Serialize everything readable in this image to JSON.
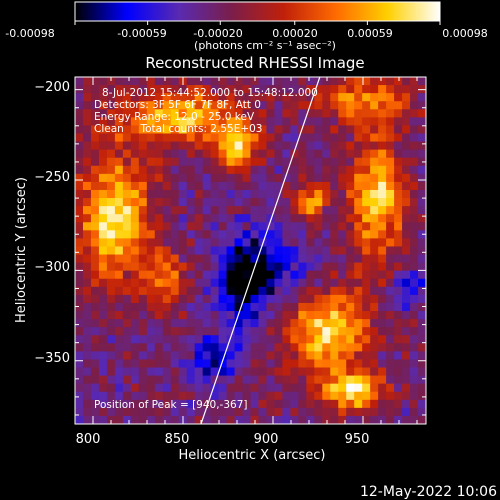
{
  "colorbar": {
    "tick_labels": [
      "-0.00098",
      "-0.00059",
      "-0.00020",
      "0.00020",
      "0.00059",
      "0.00098"
    ],
    "unit_label": "(photons cm⁻² s⁻¹ asec⁻²)",
    "range": [
      -0.00098,
      0.00098
    ],
    "colormap": [
      "#000000",
      "#0000ff",
      "#5a2ab0",
      "#7a1e4a",
      "#c0200a",
      "#ff6a00",
      "#ffd000",
      "#ffffff"
    ]
  },
  "annotations": {
    "time_range": "8-Jul-2012 15:44:52.000 to 15:48:12.000",
    "detectors": "Detectors: 3F 5F 6F 7F 8F, Att 0",
    "energy": "Energy Range: 12.0 - 25.0 keV",
    "clean": "Clean     Total counts: 2.55E+03",
    "peak": "Position of Peak = [940,-367]"
  },
  "footer": {
    "timestamp": "12-May-2022 10:06"
  },
  "chart_data": {
    "type": "heatmap",
    "title": "Reconstructed RHESSI Image",
    "xlabel": "Heliocentric X (arcsec)",
    "ylabel": "Heliocentric Y (arcsec)",
    "x_ticks": [
      800,
      850,
      900,
      950
    ],
    "y_ticks": [
      -200,
      -250,
      -300,
      -350
    ],
    "x_tick_labels": [
      "800",
      "850",
      "900",
      "950"
    ],
    "y_tick_labels": [
      "−200",
      "−250",
      "−300",
      "−350"
    ],
    "xlim": [
      790,
      985
    ],
    "ylim": [
      -385,
      -193
    ],
    "limb_line": [
      [
        860,
        -385
      ],
      [
        926,
        -193
      ]
    ],
    "blobs": [
      {
        "x": 812,
        "y": -270,
        "sx": 14,
        "sy": 24,
        "amp": 1.0
      },
      {
        "x": 848,
        "y": -215,
        "sx": 26,
        "sy": 10,
        "amp": 0.85
      },
      {
        "x": 880,
        "y": -232,
        "sx": 8,
        "sy": 8,
        "amp": 0.95
      },
      {
        "x": 958,
        "y": -260,
        "sx": 11,
        "sy": 24,
        "amp": 0.9
      },
      {
        "x": 950,
        "y": -205,
        "sx": 18,
        "sy": 9,
        "amp": 0.65
      },
      {
        "x": 921,
        "y": -262,
        "sx": 6,
        "sy": 7,
        "amp": 0.75
      },
      {
        "x": 930,
        "y": -335,
        "sx": 16,
        "sy": 17,
        "amp": 0.9
      },
      {
        "x": 945,
        "y": -367,
        "sx": 11,
        "sy": 7,
        "amp": 1.0
      },
      {
        "x": 840,
        "y": -305,
        "sx": 8,
        "sy": 10,
        "amp": 0.6
      },
      {
        "x": 868,
        "y": -350,
        "sx": 8,
        "sy": 8,
        "amp": -0.6
      },
      {
        "x": 895,
        "y": -300,
        "sx": 16,
        "sy": 14,
        "amp": -0.55
      },
      {
        "x": 882,
        "y": -310,
        "sx": 9,
        "sy": 18,
        "amp": -0.5
      },
      {
        "x": 975,
        "y": -310,
        "sx": 7,
        "sy": 8,
        "amp": -0.45
      }
    ]
  }
}
